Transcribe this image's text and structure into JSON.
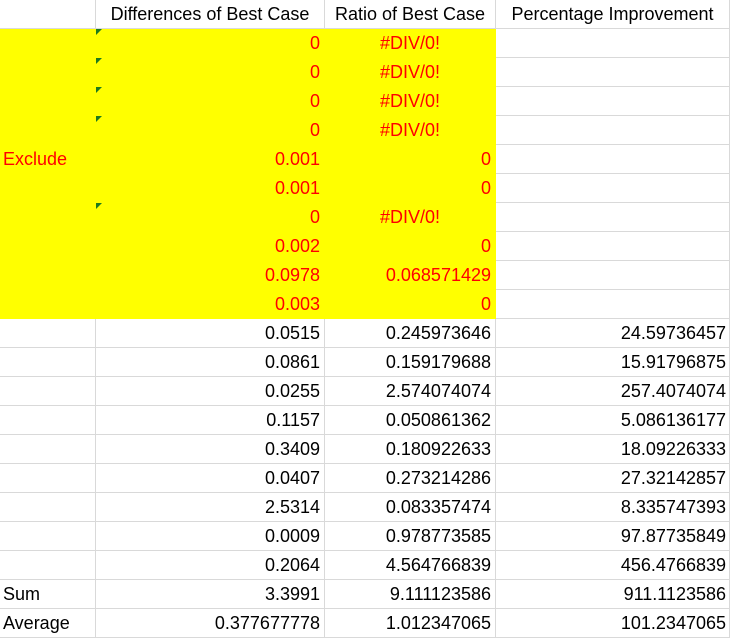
{
  "headers": [
    "",
    "Differences of Best Case",
    "Ratio of Best Case",
    "Percentage Improvement"
  ],
  "excluded_label": "Exclude",
  "excluded_rows": [
    {
      "diff": "0",
      "ratio": "#DIV/0!"
    },
    {
      "diff": "0",
      "ratio": "#DIV/0!"
    },
    {
      "diff": "0",
      "ratio": "#DIV/0!"
    },
    {
      "diff": "0",
      "ratio": "#DIV/0!"
    },
    {
      "diff": "0.001",
      "ratio": "0"
    },
    {
      "diff": "0.001",
      "ratio": "0"
    },
    {
      "diff": "0",
      "ratio": "#DIV/0!"
    },
    {
      "diff": "0.002",
      "ratio": "0"
    },
    {
      "diff": "0.0978",
      "ratio": "0.068571429"
    },
    {
      "diff": "0.003",
      "ratio": "0"
    }
  ],
  "rows": [
    {
      "diff": "0.0515",
      "ratio": "0.245973646",
      "pct": "24.59736457"
    },
    {
      "diff": "0.0861",
      "ratio": "0.159179688",
      "pct": "15.91796875"
    },
    {
      "diff": "0.0255",
      "ratio": "2.574074074",
      "pct": "257.4074074"
    },
    {
      "diff": "0.1157",
      "ratio": "0.050861362",
      "pct": "5.086136177"
    },
    {
      "diff": "0.3409",
      "ratio": "0.180922633",
      "pct": "18.09226333"
    },
    {
      "diff": "0.0407",
      "ratio": "0.273214286",
      "pct": "27.32142857"
    },
    {
      "diff": "2.5314",
      "ratio": "0.083357474",
      "pct": "8.335747393"
    },
    {
      "diff": "0.0009",
      "ratio": "0.978773585",
      "pct": "97.87735849"
    },
    {
      "diff": "0.2064",
      "ratio": "4.564766839",
      "pct": "456.4766839"
    }
  ],
  "summary": [
    {
      "label": "Sum",
      "diff": "3.3991",
      "ratio": "9.111123586",
      "pct": "911.1123586"
    },
    {
      "label": "Average",
      "diff": "0.377677778",
      "ratio": "1.012347065",
      "pct": "101.2347065"
    }
  ],
  "colors": {
    "highlight": "#ffff00",
    "text_red": "#ff0000",
    "error_flag": "#1e7a1e",
    "gridline": "#d9d9d9"
  }
}
